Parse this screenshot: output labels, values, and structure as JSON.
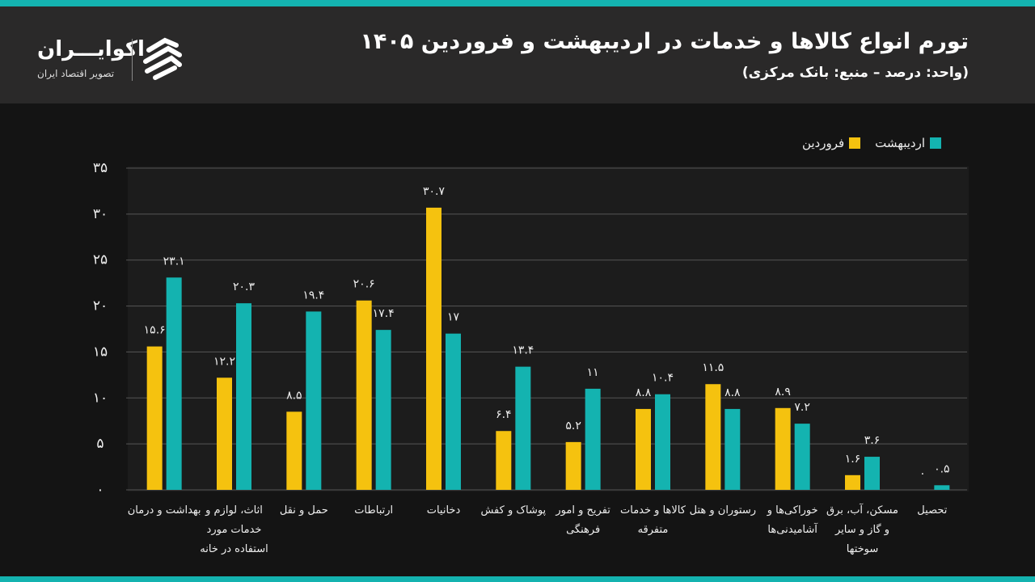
{
  "header": {
    "brand": "اکوایـــران",
    "tagline": "تصویر اقتصاد ایران"
  },
  "chart_data": {
    "type": "bar",
    "title": "تورم انواع کالاها و خدمات در اردیبهشت و فروردین ۱۴۰۵",
    "subtitle": "(واحد: درصد – منبع: بانک مرکزی)",
    "categories": [
      "بهداشت و درمان",
      "اثاث، لوازم و خدمات مورد استفاده در خانه",
      "حمل و نقل",
      "ارتباطات",
      "دخانیات",
      "پوشاک و کفش",
      "تفریح و امور فرهنگی",
      "کالاها و خدمات متفرقه",
      "رستوران و هتل",
      "خوراکی‌ها و آشامیدنی‌ها",
      "مسکن، آب، برق و گاز و سایر سوختها",
      "تحصیل"
    ],
    "series": [
      {
        "name": "فروردین",
        "color": "#f5c20f",
        "values": [
          15.6,
          12.2,
          8.5,
          20.6,
          30.7,
          6.4,
          5.2,
          8.8,
          11.5,
          8.9,
          1.6,
          0
        ],
        "value_labels": [
          "۱۵.۶",
          "۱۲.۲",
          "۸.۵",
          "۲۰.۶",
          "۳۰.۷",
          "۶.۴",
          "۵.۲",
          "۸.۸",
          "۱۱.۵",
          "۸.۹",
          "۱.۶",
          "۰"
        ]
      },
      {
        "name": "اردیبهشت",
        "color": "#14b3b0",
        "values": [
          23.1,
          20.3,
          19.4,
          17.4,
          17,
          13.4,
          11,
          10.4,
          8.8,
          7.2,
          3.6,
          0.5
        ],
        "value_labels": [
          "۲۳.۱",
          "۲۰.۳",
          "۱۹.۴",
          "۱۷.۴",
          "۱۷",
          "۱۳.۴",
          "۱۱",
          "۱۰.۴",
          "۸.۸",
          "۷.۲",
          "۳.۶",
          "۰.۵"
        ]
      }
    ],
    "ylim": [
      0,
      35
    ],
    "yticks": [
      {
        "value": 0,
        "label": "۰"
      },
      {
        "value": 5,
        "label": "۵"
      },
      {
        "value": 10,
        "label": "۱۰"
      },
      {
        "value": 15,
        "label": "۱۵"
      },
      {
        "value": 20,
        "label": "۲۰"
      },
      {
        "value": 25,
        "label": "۲۵"
      },
      {
        "value": 30,
        "label": "۳۰"
      },
      {
        "value": 35,
        "label": "۳۵"
      }
    ],
    "grid": true,
    "legend": "top-right"
  }
}
